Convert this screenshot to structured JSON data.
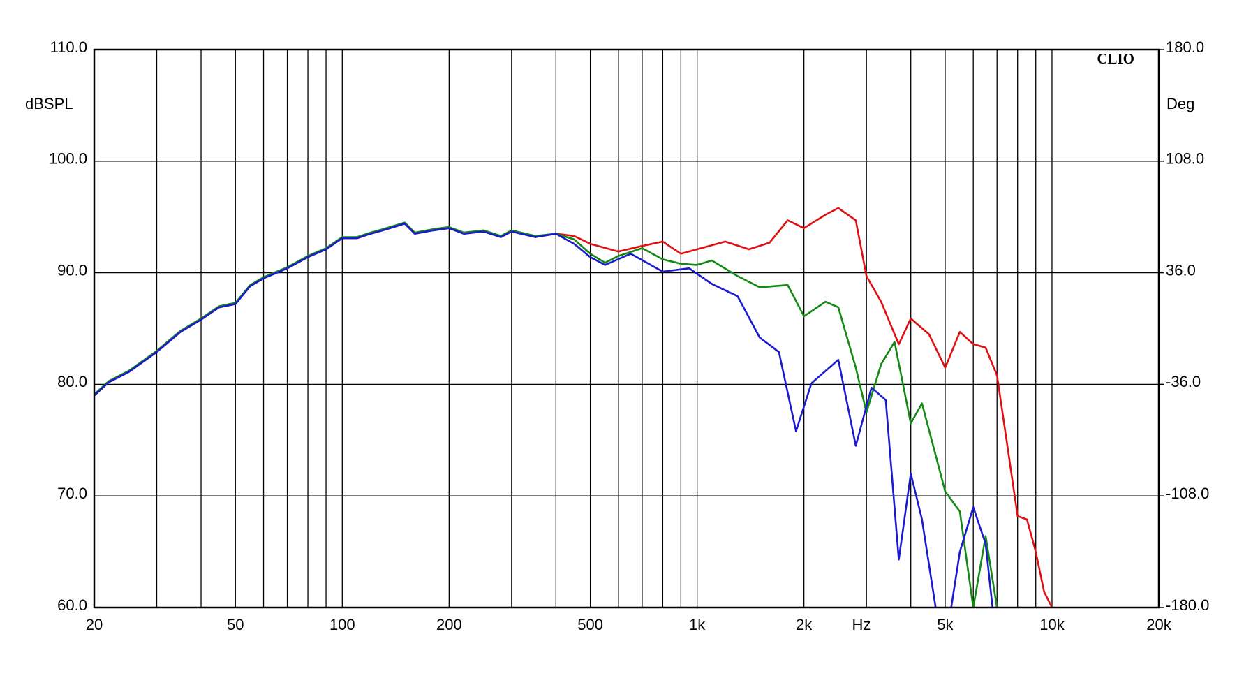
{
  "chart_data": {
    "type": "line",
    "title": "CLIO",
    "ylabel": "dBSPL",
    "y2label": "Deg",
    "xlabel": "Hz",
    "xscale": "log",
    "xlim": [
      20,
      20000
    ],
    "xticks": [
      20,
      50,
      100,
      200,
      500,
      {
        "value": 1000,
        "label": "1k"
      },
      {
        "value": 2000,
        "label": "2k"
      },
      {
        "value": 5000,
        "label": "5k"
      },
      {
        "value": 10000,
        "label": "10k"
      },
      {
        "value": 20000,
        "label": "20k"
      }
    ],
    "xminor": [
      30,
      40,
      60,
      70,
      80,
      90,
      300,
      400,
      600,
      700,
      800,
      900,
      3000,
      4000,
      6000,
      7000,
      8000,
      9000
    ],
    "ylim": [
      60,
      110
    ],
    "yticks": [
      {
        "value": 60,
        "label": "60.0"
      },
      {
        "value": 70,
        "label": "70.0"
      },
      {
        "value": 80,
        "label": "80.0"
      },
      {
        "value": 90,
        "label": "90.0"
      },
      {
        "value": 100,
        "label": "100.0"
      },
      {
        "value": 110,
        "label": "110.0"
      }
    ],
    "y2lim": [
      -180,
      180
    ],
    "y2ticks": [
      {
        "value": -180,
        "label": "-180.0"
      },
      {
        "value": -108,
        "label": "-108.0"
      },
      {
        "value": -36,
        "label": "-36.0"
      },
      {
        "value": 36,
        "label": "36.0"
      },
      {
        "value": 108,
        "label": "108.0"
      },
      {
        "value": 180,
        "label": "180.0"
      }
    ],
    "grid": true,
    "series": [
      {
        "color": "#e01010",
        "x": [
          20,
          22,
          25,
          30,
          35,
          40,
          45,
          50,
          55,
          60,
          70,
          80,
          90,
          100,
          110,
          120,
          130,
          150,
          160,
          180,
          200,
          220,
          250,
          280,
          300,
          350,
          400,
          450,
          500,
          600,
          700,
          800,
          900,
          1000,
          1200,
          1400,
          1600,
          1800,
          2000,
          2300,
          2500,
          2800,
          3000,
          3300,
          3700,
          4000,
          4500,
          5000,
          5500,
          6000,
          6500,
          7000,
          7500,
          8000,
          8500,
          9000,
          9500,
          10000
        ],
        "values": [
          79.0,
          80.2,
          81.1,
          82.9,
          84.7,
          85.8,
          86.9,
          87.2,
          88.8,
          89.5,
          90.4,
          91.4,
          92.1,
          93.1,
          93.1,
          93.5,
          93.8,
          94.4,
          93.5,
          93.8,
          94.0,
          93.5,
          93.7,
          93.2,
          93.7,
          93.2,
          93.5,
          93.3,
          92.6,
          91.9,
          92.4,
          92.8,
          91.7,
          92.1,
          92.8,
          92.1,
          92.7,
          94.7,
          94.0,
          95.2,
          95.8,
          94.7,
          89.7,
          87.4,
          83.6,
          85.9,
          84.5,
          81.5,
          84.7,
          83.6,
          83.3,
          80.8,
          74.3,
          68.2,
          67.9,
          65.0,
          61.4,
          60.0
        ]
      },
      {
        "color": "#138a13",
        "x": [
          20,
          22,
          25,
          30,
          35,
          40,
          45,
          50,
          55,
          60,
          70,
          80,
          90,
          100,
          110,
          120,
          130,
          150,
          160,
          180,
          200,
          220,
          250,
          280,
          300,
          350,
          400,
          450,
          500,
          550,
          600,
          700,
          800,
          900,
          1000,
          1100,
          1300,
          1500,
          1800,
          2000,
          2300,
          2500,
          2800,
          3000,
          3300,
          3600,
          4000,
          4300,
          5000,
          5500,
          6000,
          6500,
          7000
        ],
        "values": [
          79.1,
          80.3,
          81.2,
          83.0,
          84.8,
          85.9,
          87.0,
          87.3,
          88.9,
          89.6,
          90.5,
          91.5,
          92.2,
          93.2,
          93.2,
          93.6,
          93.9,
          94.5,
          93.6,
          93.9,
          94.1,
          93.6,
          93.8,
          93.3,
          93.8,
          93.3,
          93.5,
          93.0,
          91.7,
          90.9,
          91.5,
          92.2,
          91.2,
          90.8,
          90.7,
          91.1,
          89.7,
          88.7,
          88.9,
          86.1,
          87.4,
          86.9,
          81.5,
          77.5,
          81.8,
          83.8,
          76.5,
          78.3,
          70.4,
          68.6,
          60.0,
          66.4,
          60.0
        ]
      },
      {
        "color": "#1a1ad0",
        "x": [
          20,
          22,
          25,
          30,
          35,
          40,
          45,
          50,
          55,
          60,
          70,
          80,
          90,
          100,
          110,
          120,
          130,
          150,
          160,
          180,
          200,
          220,
          250,
          280,
          300,
          350,
          400,
          450,
          500,
          550,
          650,
          800,
          950,
          1100,
          1300,
          1500,
          1700,
          1900,
          2100,
          2500,
          2800,
          3100,
          3400,
          3700,
          4000,
          4300,
          4700,
          5000,
          5200,
          5500,
          6000,
          6500,
          6800
        ],
        "values": [
          79.0,
          80.2,
          81.1,
          82.9,
          84.7,
          85.8,
          86.9,
          87.2,
          88.8,
          89.5,
          90.4,
          91.4,
          92.1,
          93.1,
          93.1,
          93.5,
          93.8,
          94.4,
          93.5,
          93.8,
          94.0,
          93.5,
          93.7,
          93.2,
          93.7,
          93.2,
          93.5,
          92.6,
          91.4,
          90.7,
          91.7,
          90.1,
          90.4,
          89.0,
          87.9,
          84.2,
          82.9,
          75.8,
          80.1,
          82.2,
          74.5,
          79.7,
          78.6,
          64.3,
          72.0,
          67.9,
          60.0,
          null,
          60.0,
          65.0,
          69.0,
          65.7,
          60.0
        ]
      }
    ]
  }
}
